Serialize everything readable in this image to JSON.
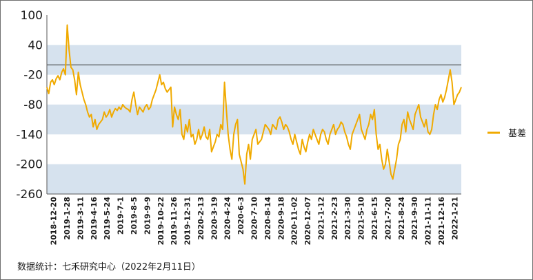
{
  "chart_data": {
    "type": "line",
    "title": "",
    "xlabel": "",
    "ylabel": "",
    "ylim": [
      -260,
      100
    ],
    "yticks": [
      100,
      40,
      -20,
      -80,
      -140,
      -200,
      -260
    ],
    "reference_line": 0,
    "band_color": "#d6e2ee",
    "line_color": "#f0aa00",
    "legend_position": "right",
    "x_tick_labels": [
      "2018-12-20",
      "2019-1-28",
      "2019-3-11",
      "2019-4-16",
      "2019-5-24",
      "2019-7-1",
      "2019-8-5",
      "2019-9-9",
      "2019-10-22",
      "2019-11-26",
      "2019-12-31",
      "2020-2-13",
      "2020-3-19",
      "2020-4-24",
      "2020-6-3",
      "2020-7-10",
      "2020-8-14",
      "2020-9-18",
      "2020-11-02",
      "2020-12-07",
      "2021-1-12",
      "2021-2-23",
      "2021-3-30",
      "2021-5-10",
      "2021-6-15",
      "2021-7-20",
      "2021-8-24",
      "2021-9-30",
      "2021-11-11",
      "2021-12-16",
      "2022-1-21"
    ],
    "series": [
      {
        "name": "基差",
        "values": [
          -45,
          -58,
          -35,
          -30,
          -40,
          -28,
          -22,
          -30,
          -15,
          -8,
          -20,
          80,
          30,
          -5,
          -10,
          -30,
          -60,
          -15,
          -40,
          -55,
          -70,
          -80,
          -95,
          -105,
          -100,
          -125,
          -110,
          -130,
          -120,
          -115,
          -110,
          -95,
          -105,
          -100,
          -90,
          -105,
          -95,
          -88,
          -92,
          -85,
          -90,
          -80,
          -85,
          -88,
          -90,
          -95,
          -70,
          -55,
          -80,
          -100,
          -85,
          -90,
          -95,
          -85,
          -80,
          -90,
          -85,
          -70,
          -60,
          -50,
          -35,
          -20,
          -40,
          -35,
          -48,
          -55,
          -50,
          -45,
          -125,
          -85,
          -100,
          -110,
          -90,
          -140,
          -150,
          -120,
          -135,
          -110,
          -145,
          -140,
          -160,
          -150,
          -130,
          -150,
          -140,
          -125,
          -145,
          -150,
          -130,
          -175,
          -165,
          -155,
          -140,
          -145,
          -120,
          -130,
          -35,
          -90,
          -140,
          -170,
          -190,
          -140,
          -120,
          -110,
          -180,
          -195,
          -210,
          -240,
          -180,
          -160,
          -190,
          -150,
          -140,
          -130,
          -160,
          -155,
          -150,
          -135,
          -120,
          -125,
          -130,
          -140,
          -120,
          -125,
          -130,
          -110,
          -105,
          -115,
          -130,
          -120,
          -125,
          -135,
          -150,
          -160,
          -140,
          -155,
          -170,
          -180,
          -150,
          -165,
          -175,
          -155,
          -140,
          -150,
          -130,
          -140,
          -150,
          -160,
          -140,
          -130,
          -135,
          -150,
          -160,
          -140,
          -130,
          -120,
          -140,
          -130,
          -125,
          -115,
          -120,
          -135,
          -145,
          -160,
          -170,
          -140,
          -130,
          -120,
          -110,
          -100,
          -130,
          -140,
          -150,
          -130,
          -120,
          -100,
          -110,
          -90,
          -140,
          -170,
          -160,
          -190,
          -210,
          -200,
          -170,
          -195,
          -220,
          -230,
          -210,
          -190,
          -160,
          -150,
          -120,
          -110,
          -135,
          -95,
          -110,
          -120,
          -130,
          -100,
          -90,
          -80,
          -105,
          -115,
          -125,
          -110,
          -135,
          -140,
          -130,
          -100,
          -80,
          -90,
          -70,
          -60,
          -75,
          -65,
          -50,
          -30,
          -10,
          -35,
          -80,
          -70,
          -60,
          -55,
          -45
        ]
      }
    ]
  },
  "footer": {
    "source_note": "数据统计：七禾研究中心（2022年2月11日）"
  }
}
